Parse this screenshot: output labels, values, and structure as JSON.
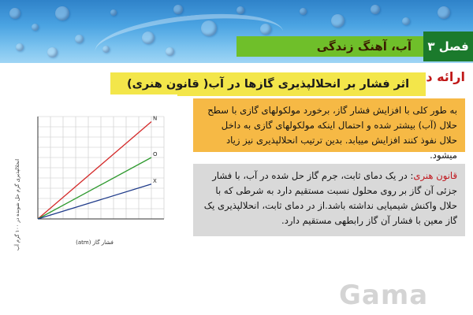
{
  "header": {
    "chapter_label": "فصل ۳",
    "chapter_title": "آب، آهنگ زندگی"
  },
  "section_mark": "ارائه درس",
  "lesson_title": "اثر فشار بر انحلالپذیری گازها در آب( قانون هنری)",
  "paragraph1": "به طور کلی با افزایش فشار گاز، برخورد مولکولهای گازی با سطح حلال (آب) بیشتر شده و احتمال اینکه مولکولهای گازی به داخل حلال نفوذ کنند افزایش مییابد. بدین ترتیب انحلالپذیری نیز زیاد میشود.",
  "henry_law": {
    "term": "قانون هنری",
    "text": ": در یک دمای ثابت، جرم گاز حل شده در آب، با فشار جزئی آن گاز بر روی محلول نسبت مستقیم دارد به شرطی که با حلال واکنش شیمیایی نداشته باشد.از در دمای ثابت، انحلالپذیری یک گاز معین با فشار آن گاز رابطهی مستقیم دارد."
  },
  "chart_data": {
    "type": "line",
    "xlabel": "فشار گاز (atm)",
    "ylabel": "انحلالپذیری گرم حل شونده در ۱۰۰ گرم آب",
    "series": [
      {
        "name": "N",
        "color": "#d42a2a",
        "x": [
          0,
          9
        ],
        "y": [
          0,
          9.5
        ]
      },
      {
        "name": "O",
        "color": "#2f9a2f",
        "x": [
          0,
          9
        ],
        "y": [
          0,
          6
        ]
      },
      {
        "name": "X",
        "color": "#1f3b8a",
        "x": [
          0,
          9
        ],
        "y": [
          0,
          3.4
        ]
      }
    ],
    "xlim": [
      0,
      10
    ],
    "ylim": [
      0,
      10
    ],
    "grid": true
  },
  "watermark": "Gama",
  "icons": {
    "banner": "water-drops-banner"
  }
}
